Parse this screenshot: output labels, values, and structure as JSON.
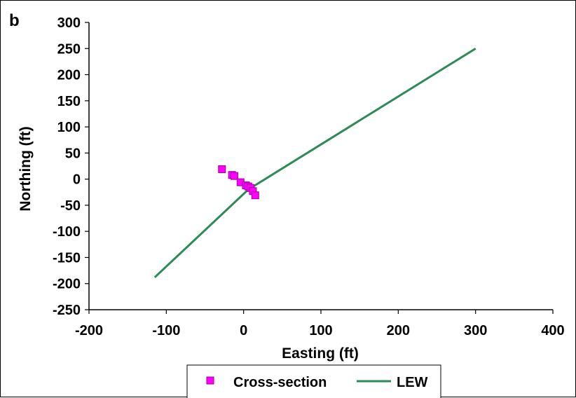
{
  "chart_data": {
    "type": "scatter",
    "panel_label": "b",
    "xlabel": "Easting (ft)",
    "ylabel": "Northing (ft)",
    "xlim": [
      -200,
      400
    ],
    "ylim": [
      -250,
      300
    ],
    "x_ticks": [
      -200,
      -100,
      0,
      100,
      200,
      300,
      400
    ],
    "y_ticks": [
      300,
      250,
      200,
      150,
      100,
      50,
      0,
      -50,
      -100,
      -150,
      -200,
      -250
    ],
    "grid": false,
    "legend_position": "bottom",
    "series": [
      {
        "name": "Cross-section",
        "kind": "scatter",
        "marker": "square",
        "color": "#ff00ff",
        "points": [
          {
            "x": -28,
            "y": 19
          },
          {
            "x": -15,
            "y": 8
          },
          {
            "x": -12,
            "y": 6
          },
          {
            "x": -4,
            "y": -6
          },
          {
            "x": 3,
            "y": -12
          },
          {
            "x": 6,
            "y": -14
          },
          {
            "x": 9,
            "y": -17
          },
          {
            "x": 12,
            "y": -23
          },
          {
            "x": 15,
            "y": -31
          }
        ]
      },
      {
        "name": "LEW",
        "kind": "line",
        "color": "#2e8b57",
        "points": [
          {
            "x": -115,
            "y": -188
          },
          {
            "x": 6,
            "y": -20
          },
          {
            "x": 300,
            "y": 250
          }
        ]
      }
    ]
  }
}
